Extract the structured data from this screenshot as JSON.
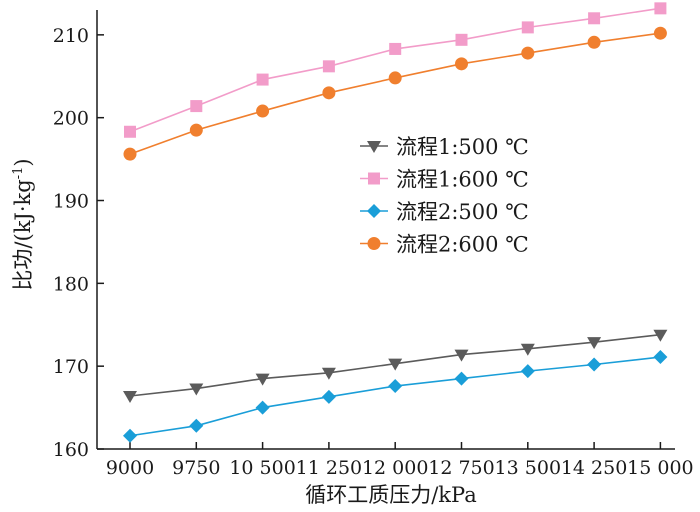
{
  "chart_data": {
    "type": "line",
    "xlabel": "循环工质压力/kPa",
    "ylabel": "比功/(kJ·kg",
    "ylabel_sup": "-1",
    "ylabel_end": ")",
    "ylim": [
      160,
      213
    ],
    "yticks": [
      160,
      170,
      180,
      190,
      200,
      210
    ],
    "categories": [
      "9000",
      "9750",
      "10 500",
      "11 250",
      "12 000",
      "12 750",
      "13 500",
      "14 250",
      "15 000"
    ],
    "grid": false,
    "legend_position": "center",
    "series": [
      {
        "name": "流程1:500 ℃",
        "marker": "triangle-down",
        "color": "#5b5b5b",
        "values": [
          166.4,
          167.3,
          168.5,
          169.2,
          170.3,
          171.4,
          172.1,
          172.9,
          173.8
        ]
      },
      {
        "name": "流程1:600 ℃",
        "marker": "square",
        "color": "#f29cc9",
        "values": [
          198.3,
          201.4,
          204.6,
          206.2,
          208.3,
          209.4,
          210.9,
          212.0,
          213.2
        ]
      },
      {
        "name": "流程2:500 ℃",
        "marker": "diamond",
        "color": "#1a9ed8",
        "values": [
          161.6,
          162.8,
          165.0,
          166.3,
          167.6,
          168.5,
          169.4,
          170.2,
          171.1
        ]
      },
      {
        "name": "流程2:600 ℃",
        "marker": "circle",
        "color": "#f07f2e",
        "values": [
          195.6,
          198.5,
          200.8,
          203.0,
          204.8,
          206.5,
          207.8,
          209.1,
          210.2
        ]
      }
    ]
  }
}
